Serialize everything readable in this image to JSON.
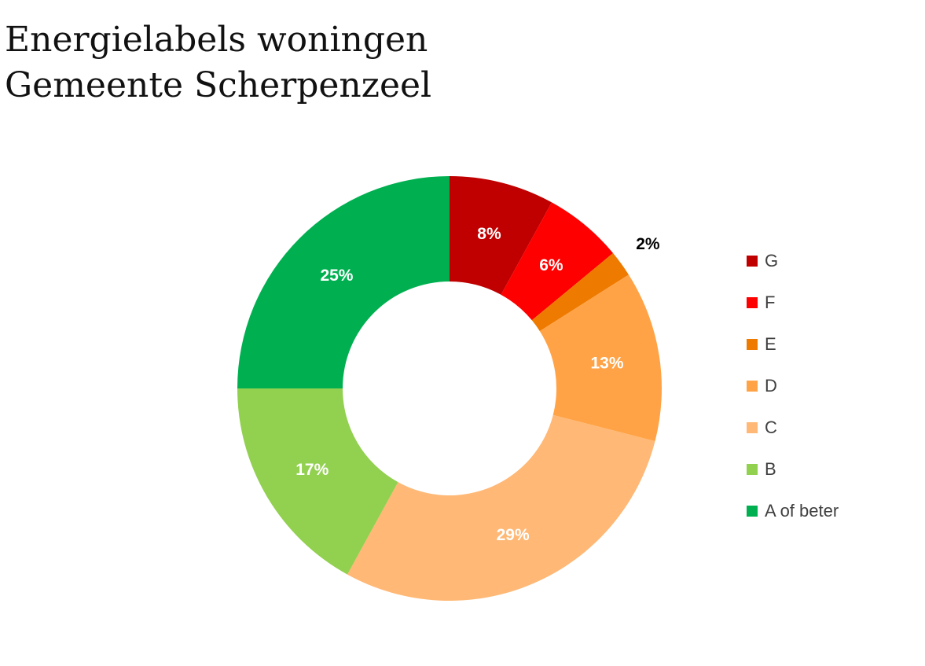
{
  "chart_data": {
    "type": "pie",
    "variant": "donut",
    "title": "Energielabels woningen Gemeente Scherpenzeel",
    "title_lines": [
      "Energielabels woningen",
      "Gemeente Scherpenzeel"
    ],
    "slices": [
      {
        "label": "G",
        "value": 8,
        "value_label": "8%",
        "color": "#C00000",
        "label_color": "#ffffff",
        "label_position": "inside"
      },
      {
        "label": "F",
        "value": 6,
        "value_label": "6%",
        "color": "#FF0000",
        "label_color": "#ffffff",
        "label_position": "inside"
      },
      {
        "label": "E",
        "value": 2,
        "value_label": "2%",
        "color": "#EE7A00",
        "label_color": "#000000",
        "label_position": "outside"
      },
      {
        "label": "D",
        "value": 13,
        "value_label": "13%",
        "color": "#FFA346",
        "label_color": "#ffffff",
        "label_position": "inside"
      },
      {
        "label": "C",
        "value": 29,
        "value_label": "29%",
        "color": "#FFB875",
        "label_color": "#ffffff",
        "label_position": "inside"
      },
      {
        "label": "B",
        "value": 17,
        "value_label": "17%",
        "color": "#92D050",
        "label_color": "#ffffff",
        "label_position": "inside"
      },
      {
        "label": "A of beter",
        "value": 25,
        "value_label": "25%",
        "color": "#00B050",
        "label_color": "#ffffff",
        "label_position": "inside"
      }
    ],
    "start_angle": "12 o'clock",
    "direction": "clockwise",
    "legend_position": "right",
    "grid": false
  }
}
